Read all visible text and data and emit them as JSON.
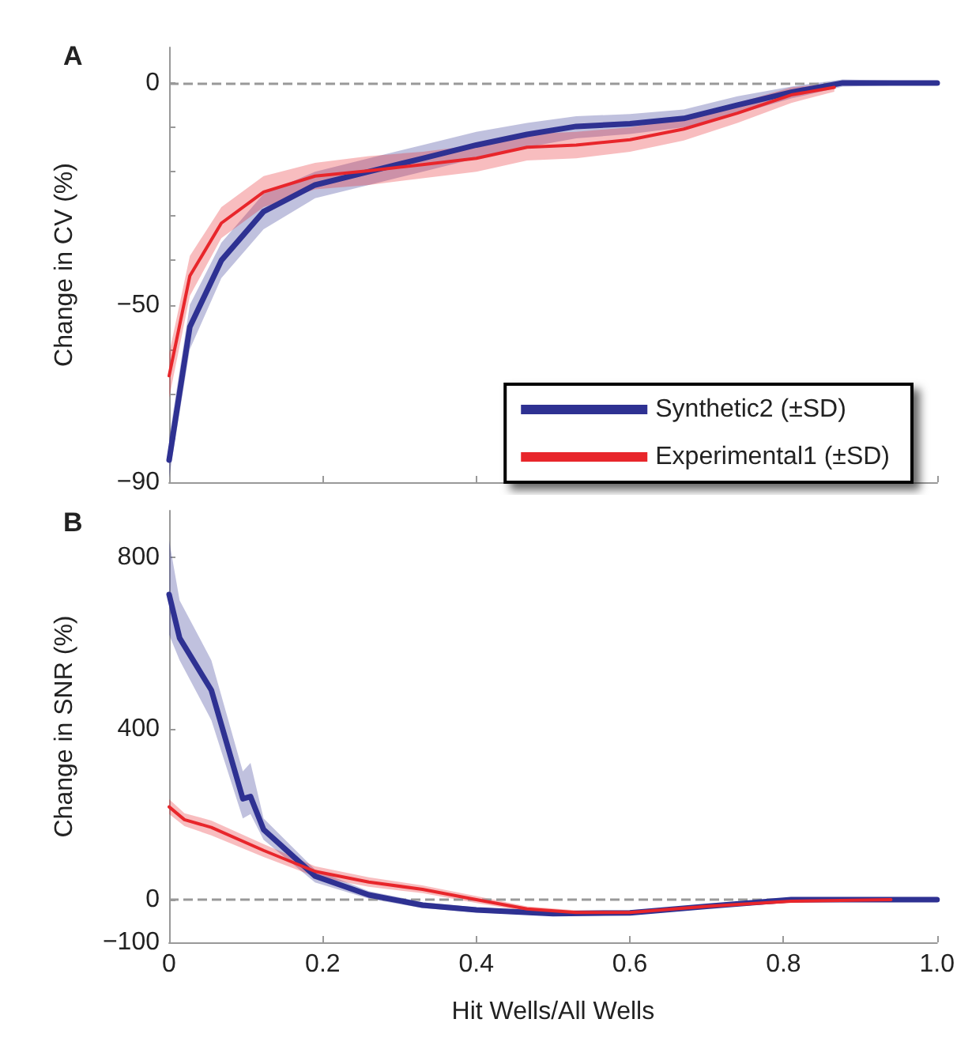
{
  "chart_data": [
    {
      "type": "line",
      "title": "A",
      "ylabel": "Change in CV (%)",
      "xlim": [
        0,
        1
      ],
      "xticks": [
        0,
        0.2,
        0.4,
        0.6,
        0.8,
        1
      ],
      "ylim": [
        -90,
        8
      ],
      "yticks": [
        {
          "value": -90,
          "label": "−90"
        },
        {
          "value": -80,
          "label": null
        },
        {
          "value": -70,
          "label": null
        },
        {
          "value": -60,
          "label": null
        },
        {
          "value": -50,
          "label": "−50"
        },
        {
          "value": -40,
          "label": null
        },
        {
          "value": -30,
          "label": null
        },
        {
          "value": -20,
          "label": null
        },
        {
          "value": -10,
          "label": null
        },
        0
      ],
      "tick_labels": "y",
      "grid": false,
      "legend": "bottom right",
      "marker": "none",
      "line_style": "solid",
      "ref_lines": [
        {
          "axis": "y",
          "value": 0,
          "color": "#999999",
          "line_style": "dashed"
        }
      ],
      "series": [
        {
          "name": "Synthetic2 (±SD)",
          "color": "#2e3192",
          "x": [
            0,
            0.027,
            0.068,
            0.123,
            0.19,
            0.26,
            0.33,
            0.4,
            0.466,
            0.53,
            0.6,
            0.67,
            0.74,
            0.81,
            0.877,
            1
          ],
          "values": [
            -85,
            -55,
            -40,
            -29,
            -23,
            -20,
            -17,
            -14,
            -11.6,
            -9.8,
            -9.2,
            -8,
            -5,
            -2.1,
            0,
            0
          ],
          "lower": [
            -89,
            -60,
            -44,
            -33,
            -26,
            -23,
            -20,
            -17,
            -14.5,
            -12.5,
            -11.5,
            -10,
            -7,
            -3.5,
            -0.8,
            -0.3
          ],
          "upper": [
            -80,
            -50,
            -36,
            -25,
            -20,
            -17,
            -14,
            -11,
            -9,
            -7.5,
            -7,
            -6,
            -3,
            -0.8,
            0.8,
            0.3
          ]
        },
        {
          "name": "Experimental1 (±SD)",
          "color": "#e8262b",
          "x": [
            0,
            0.027,
            0.068,
            0.123,
            0.19,
            0.26,
            0.33,
            0.4,
            0.466,
            0.53,
            0.6,
            0.67,
            0.74,
            0.81,
            0.866
          ],
          "values": [
            -66,
            -43.5,
            -31.6,
            -24.6,
            -21,
            -19.8,
            -18.4,
            -17,
            -14.5,
            -14,
            -12.8,
            -10.4,
            -6.8,
            -2.7,
            -1
          ],
          "lower": [
            -71,
            -48,
            -35,
            -28,
            -24,
            -23,
            -21.5,
            -20,
            -17.5,
            -17,
            -15.5,
            -13,
            -9,
            -4.5,
            -2
          ],
          "upper": [
            -61,
            -39,
            -28,
            -21,
            -18,
            -16.5,
            -15.5,
            -14,
            -11.5,
            -11,
            -10,
            -8,
            -4.5,
            -1,
            0
          ]
        }
      ]
    },
    {
      "type": "line",
      "title": "B",
      "ylabel": "Change in SNR (%)",
      "xlabel": "Hit Wells/All Wells",
      "xlim": [
        0,
        1
      ],
      "xticks": [
        0,
        0.2,
        0.4,
        0.6,
        0.8,
        {
          "value": 1,
          "label": "1.0"
        }
      ],
      "ylim": [
        -100,
        910
      ],
      "yticks": [
        {
          "value": -100,
          "label": "−100"
        },
        0,
        400,
        800
      ],
      "grid": false,
      "legend": false,
      "marker": "none",
      "line_style": "solid",
      "ref_lines": [
        {
          "axis": "y",
          "value": 0,
          "color": "#999999",
          "line_style": "dashed"
        }
      ],
      "series": [
        {
          "color": "#2e3192",
          "x": [
            0,
            0.0137,
            0.055,
            0.096,
            0.106,
            0.123,
            0.19,
            0.26,
            0.33,
            0.4,
            0.5,
            0.6,
            0.7,
            0.81,
            1
          ],
          "values": [
            714,
            612,
            490,
            236,
            241,
            164,
            55,
            11,
            -13,
            -24,
            -33,
            -31,
            -16,
            0,
            0
          ],
          "lower": [
            620,
            560,
            420,
            190,
            200,
            140,
            40,
            2,
            -20,
            -30,
            -38,
            -35,
            -20,
            -3,
            -3
          ],
          "upper": [
            840,
            700,
            560,
            300,
            320,
            190,
            70,
            20,
            -6,
            -18,
            -28,
            -27,
            -12,
            3,
            3
          ]
        },
        {
          "color": "#e8262b",
          "x": [
            0,
            0.02,
            0.055,
            0.123,
            0.19,
            0.26,
            0.33,
            0.4,
            0.466,
            0.53,
            0.6,
            0.7,
            0.81,
            0.94
          ],
          "values": [
            217,
            187,
            169,
            115,
            66,
            41,
            24,
            0,
            -22,
            -30,
            -30,
            -16,
            -4,
            0
          ],
          "lower": [
            200,
            172,
            150,
            100,
            54,
            30,
            15,
            -8,
            -28,
            -35,
            -35,
            -20,
            -7,
            -3
          ],
          "upper": [
            235,
            202,
            185,
            130,
            78,
            52,
            33,
            8,
            -16,
            -25,
            -25,
            -12,
            -1,
            3
          ]
        }
      ]
    }
  ]
}
